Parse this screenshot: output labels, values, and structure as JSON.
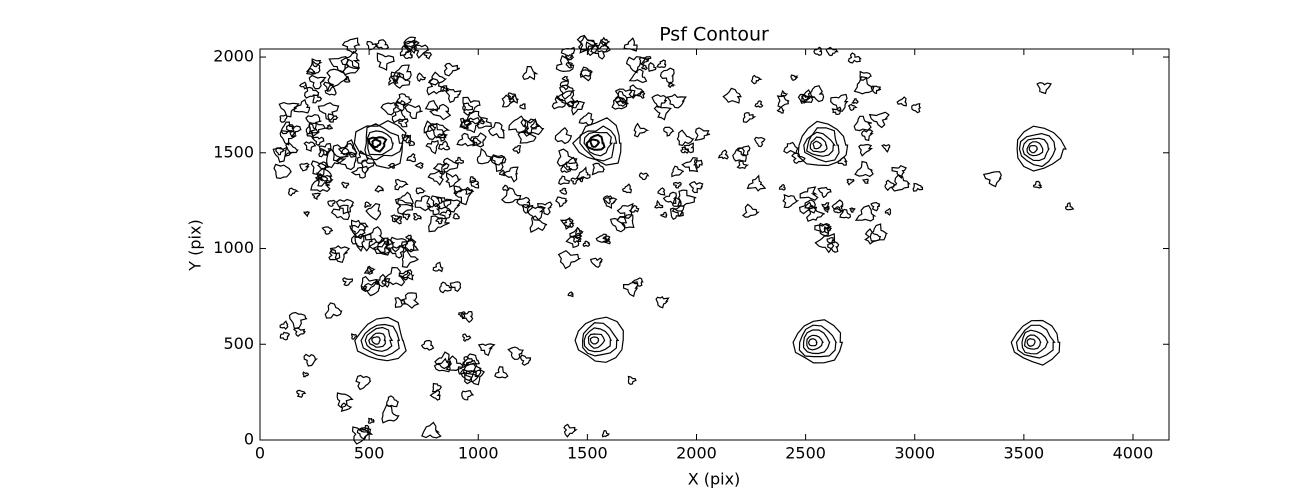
{
  "chart_data": {
    "type": "contour",
    "title": "Psf Contour",
    "x_label": "X (pix)",
    "y_label": "Y (pix)",
    "xlim": [
      0,
      4165
    ],
    "ylim": [
      0,
      2042
    ],
    "xticks": [
      0,
      500,
      1000,
      1500,
      2000,
      2500,
      3000,
      3500,
      4000
    ],
    "yticks": [
      0,
      500,
      1000,
      1500,
      2000
    ],
    "color": "#000000",
    "grid": false
  }
}
